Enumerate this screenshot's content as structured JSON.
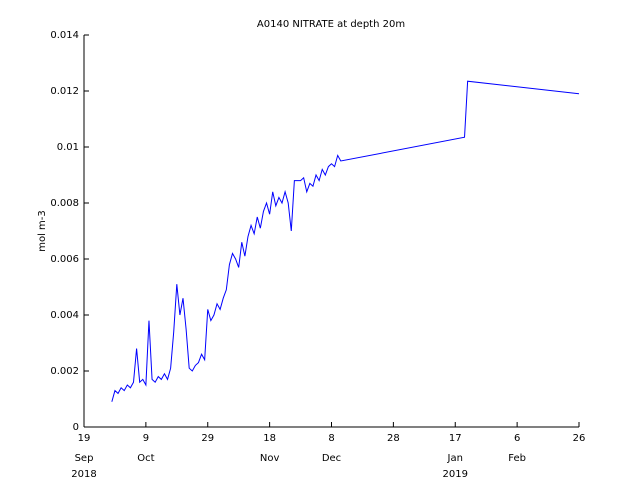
{
  "chart_data": {
    "type": "line",
    "title": "A0140 NITRATE at depth 20m",
    "ylabel": "mol m-3",
    "color": "#0000ff",
    "x": [
      "2018-09-28",
      "2018-09-29",
      "2018-09-30",
      "2018-10-01",
      "2018-10-02",
      "2018-10-03",
      "2018-10-04",
      "2018-10-05",
      "2018-10-06",
      "2018-10-07",
      "2018-10-08",
      "2018-10-09",
      "2018-10-10",
      "2018-10-11",
      "2018-10-12",
      "2018-10-13",
      "2018-10-14",
      "2018-10-15",
      "2018-10-16",
      "2018-10-17",
      "2018-10-18",
      "2018-10-19",
      "2018-10-20",
      "2018-10-21",
      "2018-10-22",
      "2018-10-23",
      "2018-10-24",
      "2018-10-25",
      "2018-10-26",
      "2018-10-27",
      "2018-10-28",
      "2018-10-29",
      "2018-10-30",
      "2018-10-31",
      "2018-11-01",
      "2018-11-02",
      "2018-11-03",
      "2018-11-04",
      "2018-11-05",
      "2018-11-06",
      "2018-11-07",
      "2018-11-08",
      "2018-11-09",
      "2018-11-10",
      "2018-11-11",
      "2018-11-12",
      "2018-11-13",
      "2018-11-14",
      "2018-11-15",
      "2018-11-16",
      "2018-11-17",
      "2018-11-18",
      "2018-11-19",
      "2018-11-20",
      "2018-11-21",
      "2018-11-22",
      "2018-11-23",
      "2018-11-24",
      "2018-11-25",
      "2018-11-26",
      "2018-11-27",
      "2018-11-28",
      "2018-11-29",
      "2018-11-30",
      "2018-12-01",
      "2018-12-02",
      "2018-12-03",
      "2018-12-04",
      "2018-12-05",
      "2018-12-06",
      "2018-12-07",
      "2018-12-08",
      "2018-12-09",
      "2018-12-10",
      "2018-12-11",
      "2019-01-20",
      "2019-01-21",
      "2019-02-26"
    ],
    "values": [
      0.0009,
      0.0013,
      0.0012,
      0.0014,
      0.0013,
      0.0015,
      0.0014,
      0.0016,
      0.0028,
      0.0016,
      0.0017,
      0.0015,
      0.0038,
      0.0017,
      0.0016,
      0.0018,
      0.0017,
      0.0019,
      0.0017,
      0.0021,
      0.0034,
      0.0051,
      0.004,
      0.0046,
      0.0035,
      0.0021,
      0.002,
      0.0022,
      0.0023,
      0.0026,
      0.0024,
      0.0042,
      0.0038,
      0.004,
      0.0044,
      0.0042,
      0.0046,
      0.0049,
      0.0058,
      0.0062,
      0.006,
      0.0057,
      0.0066,
      0.0061,
      0.0068,
      0.0072,
      0.0069,
      0.0075,
      0.0071,
      0.0077,
      0.008,
      0.0076,
      0.0084,
      0.0079,
      0.0082,
      0.008,
      0.0084,
      0.008,
      0.007,
      0.0088,
      0.0088,
      0.0088,
      0.0089,
      0.0084,
      0.0087,
      0.0086,
      0.009,
      0.0088,
      0.0092,
      0.009,
      0.0093,
      0.0094,
      0.0093,
      0.0097,
      0.0095,
      0.01035,
      0.01235,
      0.0119
    ],
    "xlim": [
      "2018-09-19",
      "2019-02-26"
    ],
    "xticks": [
      {
        "value": "2018-09-19",
        "label": "19"
      },
      {
        "value": "2018-10-09",
        "label": "9"
      },
      {
        "value": "2018-10-29",
        "label": "29"
      },
      {
        "value": "2018-11-18",
        "label": "18"
      },
      {
        "value": "2018-12-08",
        "label": "8"
      },
      {
        "value": "2018-12-28",
        "label": "28"
      },
      {
        "value": "2019-01-17",
        "label": "17"
      },
      {
        "value": "2019-02-06",
        "label": "6"
      },
      {
        "value": "2019-02-26",
        "label": "26"
      }
    ],
    "xtick_months": [
      {
        "value": "2018-09-19",
        "label": "Sep"
      },
      {
        "value": "2018-10-09",
        "label": "Oct"
      },
      {
        "value": "2018-11-18",
        "label": "Nov"
      },
      {
        "value": "2018-12-08",
        "label": "Dec"
      },
      {
        "value": "2019-01-17",
        "label": "Jan"
      },
      {
        "value": "2019-02-06",
        "label": "Feb"
      }
    ],
    "xtick_years": [
      {
        "value": "2018-09-19",
        "label": "2018"
      },
      {
        "value": "2019-01-17",
        "label": "2019"
      }
    ],
    "ylim": [
      0,
      0.014
    ],
    "yticks": [
      0,
      0.002,
      0.004,
      0.006,
      0.008,
      0.01,
      0.012,
      0.014
    ]
  }
}
